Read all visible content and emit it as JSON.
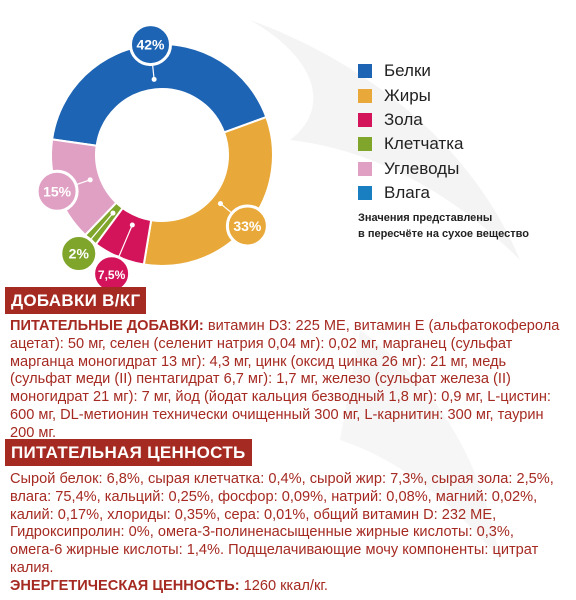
{
  "chart_data": {
    "type": "pie",
    "variant": "donut",
    "slices": [
      {
        "name": "Белки",
        "value": 42,
        "label": "42%",
        "color": "#1e64b4"
      },
      {
        "name": "Жиры",
        "value": 33,
        "label": "33%",
        "color": "#e9a93a"
      },
      {
        "name": "Зола",
        "value": 7.5,
        "label": "7,5%",
        "color": "#d4145a"
      },
      {
        "name": "Клетчатка",
        "value": 2,
        "label": "2%",
        "color": "#7fa52a"
      },
      {
        "name": "Углеводы",
        "value": 15,
        "label": "15%",
        "color": "#e0a0c4"
      },
      {
        "name": "Влага",
        "value": 0,
        "label": "",
        "color": "#1a7fc1"
      }
    ]
  },
  "legend": [
    {
      "label": "Белки",
      "color": "#1e64b4"
    },
    {
      "label": "Жиры",
      "color": "#e9a93a"
    },
    {
      "label": "Зола",
      "color": "#d4145a"
    },
    {
      "label": "Клетчатка",
      "color": "#7fa52a"
    },
    {
      "label": "Углеводы",
      "color": "#e0a0c4"
    },
    {
      "label": "Влага",
      "color": "#1a7fc1"
    }
  ],
  "note": {
    "line1": "Значения представлены",
    "line2": "в пересчёте на сухое вещество"
  },
  "additives": {
    "header": "ДОБАВКИ В/КГ",
    "lead": "ПИТАТЕЛЬНЫЕ ДОБАВКИ:",
    "text": " витамин D3: 225 МЕ, витамин E (альфатокоферола ацетат): 50 мг, селен (селенит натрия 0,04 мг): 0,02 мг, марганец (сульфат марганца моногидрат 13 мг): 4,3 мг, цинк (оксид цинка 26 мг): 21 мг, медь (сульфат меди (II) пентагидрат 6,7 мг): 1,7 мг, железо (сульфат железа (II) моногидрат 21 мг): 7 мг, йод (йодат кальция безводный 1,8 мг): 0,9 мг, L-цистин: 600 мг, DL-метионин технически очищенный 300 мг, L-карнитин: 300 мг, таурин 200 мг."
  },
  "nutrition": {
    "header": "ПИТАТЕЛЬНАЯ ЦЕННОСТЬ",
    "text": "Сырой белок: 6,8%, сырая клетчатка: 0,4%, сырой жир: 7,3%, сырая зола: 2,5%, влага: 75,4%, кальций: 0,25%, фосфор: 0,09%, натрий: 0,08%, магний: 0,02%, калий: 0,17%, хлориды: 0,35%, сера: 0,01%, общий витамин D: 232 МЕ, Гидроксипролин: 0%, омега-3-полиненасыщенные жирные кислоты: 0,3%, омега-6 жирные кислоты: 1,4%. Подщелачивающие мочу компоненты: цитрат калия.",
    "energy_label": "ЭНЕРГЕТИЧЕСКАЯ ЦЕННОСТЬ:",
    "energy_value": "  1260 ккал/кг."
  }
}
